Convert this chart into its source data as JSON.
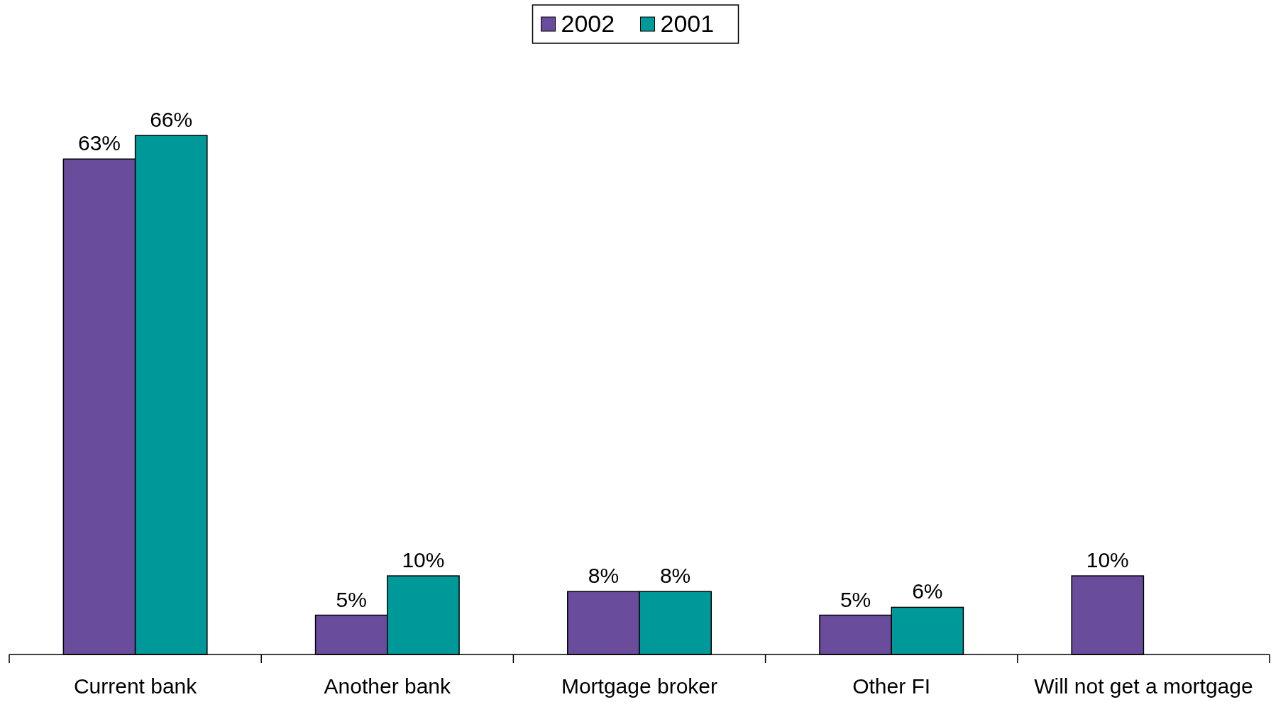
{
  "chart_data": {
    "type": "bar",
    "categories": [
      "Current bank",
      "Another bank",
      "Mortgage broker",
      "Other FI",
      "Will not get a mortgage"
    ],
    "series": [
      {
        "name": "2002",
        "color": "#6a4c9c",
        "values": [
          63,
          5,
          8,
          5,
          10
        ],
        "value_labels": [
          "63%",
          "5%",
          "8%",
          "5%",
          "10%"
        ]
      },
      {
        "name": "2001",
        "color": "#009999",
        "values": [
          66,
          10,
          8,
          6,
          null
        ],
        "value_labels": [
          "66%",
          "10%",
          "8%",
          "6%",
          null
        ]
      }
    ],
    "legend": "top"
  }
}
